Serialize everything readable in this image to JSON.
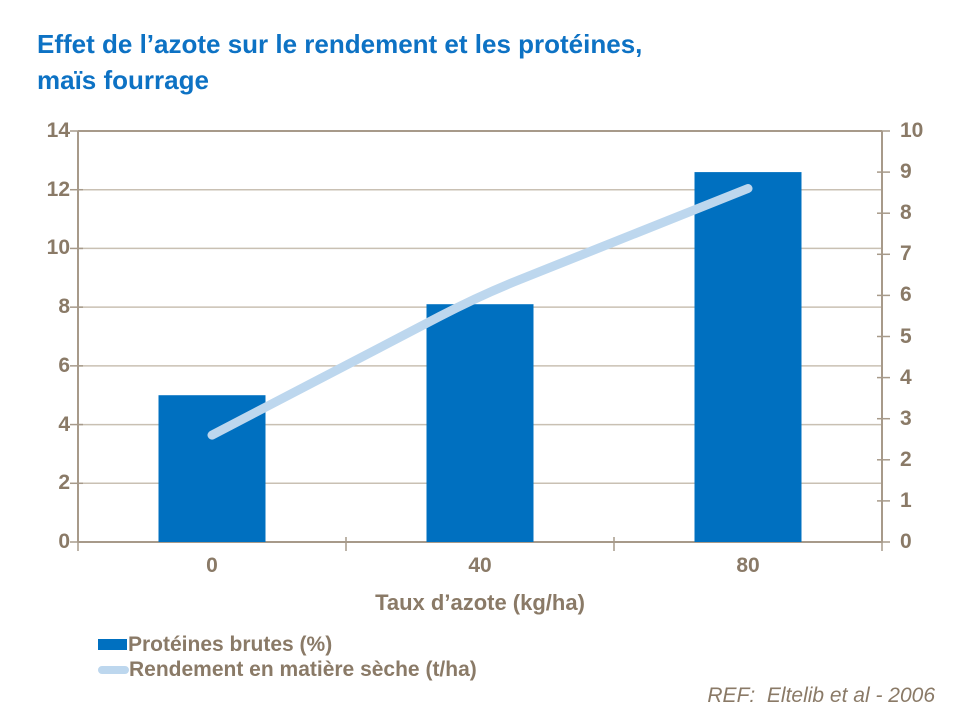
{
  "title": {
    "line1": "Effet de l’azote sur le rendement et les protéines,",
    "line2": "maïs fourrage"
  },
  "footer": {
    "ref": "REF:  Eltelib et al - 2006"
  },
  "colors": {
    "title_blue": "#0d72c4",
    "bar_blue": "#0070C0",
    "line_light_blue": "#BDD7EE",
    "axis_text_brown": "#8a7a67",
    "gridline": "#c9c0b3",
    "axis_line": "#a79a8a"
  },
  "chart_data": {
    "type": "bar",
    "subtype": "combo-bar-line-dual-axis",
    "title": "Effet de l’azote sur le rendement et les protéines, maïs fourrage",
    "categories": [
      "0",
      "40",
      "80"
    ],
    "xlabel": "Taux d’azote (kg/ha)",
    "series": [
      {
        "name": "Protéines brutes (%)",
        "type": "bar",
        "axis": "left",
        "color": "#0070C0",
        "values": [
          5.0,
          8.1,
          12.6
        ]
      },
      {
        "name": "Rendement en matière sèche (t/ha)",
        "type": "line",
        "axis": "right",
        "color": "#BDD7EE",
        "values": [
          2.6,
          6.0,
          8.6
        ]
      }
    ],
    "left_axis": {
      "min": 0,
      "max": 14,
      "step": 2,
      "ticks": [
        0,
        2,
        4,
        6,
        8,
        10,
        12,
        14
      ]
    },
    "right_axis": {
      "min": 0,
      "max": 10,
      "step": 1,
      "ticks": [
        0,
        1,
        2,
        3,
        4,
        5,
        6,
        7,
        8,
        9,
        10
      ]
    },
    "grid": true,
    "legend_position": "bottom-left"
  }
}
